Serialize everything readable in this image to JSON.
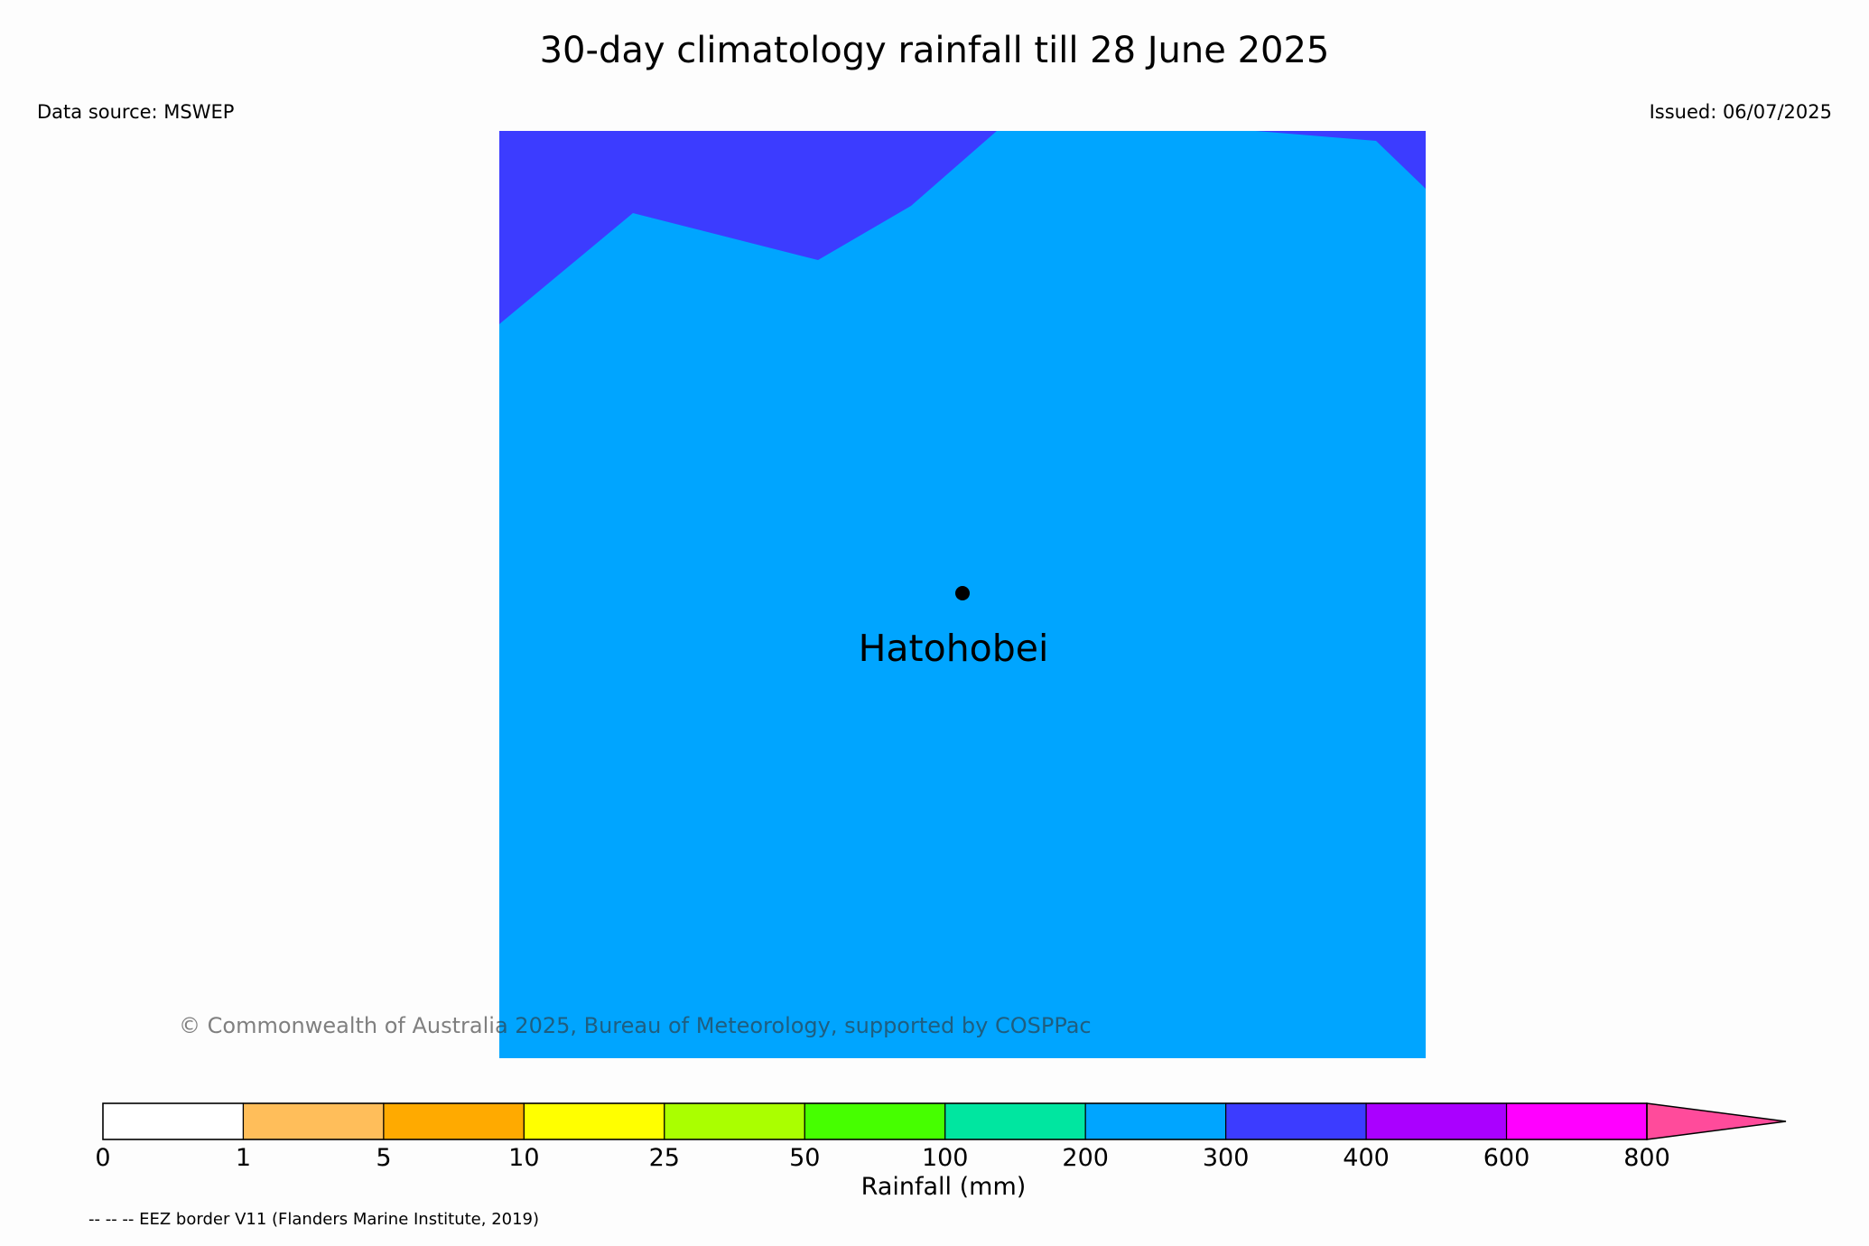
{
  "title": "30-day climatology rainfall till 28 June 2025",
  "data_source": "Data source: MSWEP",
  "issued": "Issued: 06/07/2025",
  "place": {
    "name": "Hatohobei"
  },
  "map_colors": {
    "upper_band": "#3c3cff",
    "main_band": "#00a5ff",
    "marker": "#000000"
  },
  "copyright": "© Commonwealth of Australia 2025, Bureau of Meteorology, supported by COSPPac",
  "colorbar": {
    "label": "Rainfall (mm)",
    "ticks": [
      "0",
      "1",
      "5",
      "10",
      "25",
      "50",
      "100",
      "200",
      "300",
      "400",
      "600",
      "800"
    ],
    "colors": [
      "#ffffff",
      "#ffbe5a",
      "#ffaa00",
      "#ffff00",
      "#aaff00",
      "#46ff00",
      "#00e6a0",
      "#00a5ff",
      "#3c3cff",
      "#aa00ff",
      "#ff00ff"
    ],
    "extend_color": "#ff4b9b"
  },
  "footnote": "-- -- -- EEZ border V11 (Flanders Marine Institute, 2019)"
}
